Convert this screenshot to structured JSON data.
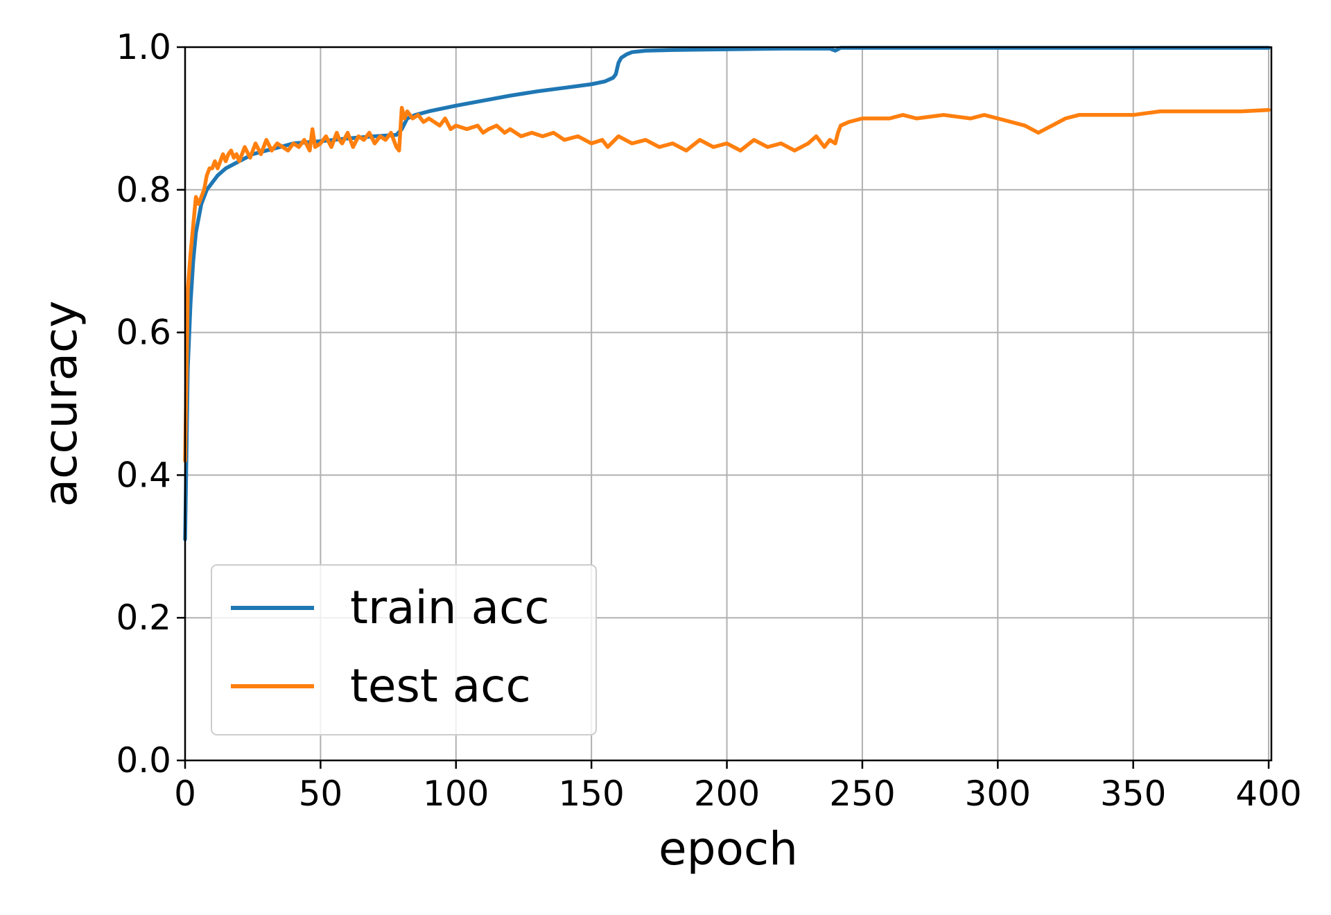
{
  "chart_data": {
    "type": "line",
    "xlabel": "epoch",
    "ylabel": "accuracy",
    "xlim": [
      0,
      401
    ],
    "ylim": [
      0.0,
      1.0
    ],
    "xticks": [
      0,
      50,
      100,
      150,
      200,
      250,
      300,
      350,
      400
    ],
    "yticks": [
      0.0,
      0.2,
      0.4,
      0.6,
      0.8,
      1.0
    ],
    "xtick_labels": [
      "0",
      "50",
      "100",
      "150",
      "200",
      "250",
      "300",
      "350",
      "400"
    ],
    "ytick_labels": [
      "0.0",
      "0.2",
      "0.4",
      "0.6",
      "0.8",
      "1.0"
    ],
    "grid": true,
    "legend_position": "lower-left",
    "series": [
      {
        "name": "train acc",
        "color": "#1f77b4",
        "x": [
          0,
          1,
          2,
          3,
          4,
          5,
          6,
          8,
          10,
          12,
          15,
          20,
          25,
          30,
          35,
          40,
          50,
          60,
          70,
          78,
          80,
          82,
          85,
          90,
          100,
          110,
          120,
          130,
          140,
          150,
          155,
          158,
          159,
          160,
          161,
          163,
          165,
          170,
          180,
          200,
          220,
          238,
          240,
          242,
          260,
          300,
          350,
          400
        ],
        "y": [
          0.31,
          0.55,
          0.64,
          0.7,
          0.74,
          0.76,
          0.78,
          0.8,
          0.81,
          0.82,
          0.83,
          0.84,
          0.85,
          0.855,
          0.86,
          0.865,
          0.868,
          0.872,
          0.875,
          0.877,
          0.885,
          0.9,
          0.905,
          0.91,
          0.918,
          0.925,
          0.932,
          0.938,
          0.943,
          0.948,
          0.952,
          0.957,
          0.962,
          0.978,
          0.985,
          0.99,
          0.993,
          0.995,
          0.996,
          0.997,
          0.998,
          0.998,
          0.995,
          0.999,
          0.999,
          0.999,
          0.999,
          0.999
        ]
      },
      {
        "name": "test acc",
        "color": "#ff7f0e",
        "x": [
          0,
          1,
          2,
          3,
          4,
          5,
          6,
          7,
          8,
          9,
          10,
          11,
          12,
          13,
          14,
          15,
          16,
          17,
          18,
          19,
          20,
          22,
          24,
          26,
          28,
          30,
          32,
          34,
          36,
          38,
          40,
          42,
          44,
          46,
          47,
          48,
          50,
          52,
          54,
          56,
          57,
          58,
          60,
          62,
          64,
          66,
          68,
          70,
          72,
          74,
          76,
          78,
          79,
          80,
          81,
          82,
          84,
          86,
          88,
          90,
          92,
          94,
          96,
          98,
          100,
          104,
          108,
          110,
          112,
          115,
          118,
          120,
          124,
          128,
          132,
          136,
          140,
          145,
          150,
          154,
          156,
          160,
          165,
          170,
          175,
          180,
          185,
          190,
          195,
          200,
          205,
          210,
          215,
          220,
          225,
          230,
          233,
          236,
          238,
          240,
          241,
          242,
          245,
          250,
          260,
          265,
          270,
          280,
          290,
          295,
          300,
          305,
          310,
          315,
          320,
          325,
          330,
          340,
          350,
          360,
          370,
          380,
          390,
          400
        ],
        "y": [
          0.42,
          0.66,
          0.71,
          0.75,
          0.79,
          0.78,
          0.79,
          0.8,
          0.82,
          0.83,
          0.83,
          0.84,
          0.83,
          0.84,
          0.85,
          0.84,
          0.85,
          0.855,
          0.845,
          0.85,
          0.84,
          0.86,
          0.845,
          0.865,
          0.85,
          0.87,
          0.855,
          0.865,
          0.86,
          0.855,
          0.865,
          0.86,
          0.87,
          0.855,
          0.885,
          0.86,
          0.865,
          0.875,
          0.86,
          0.88,
          0.87,
          0.865,
          0.88,
          0.86,
          0.875,
          0.87,
          0.88,
          0.865,
          0.875,
          0.87,
          0.88,
          0.86,
          0.855,
          0.915,
          0.9,
          0.91,
          0.9,
          0.905,
          0.895,
          0.9,
          0.895,
          0.89,
          0.9,
          0.885,
          0.89,
          0.885,
          0.89,
          0.88,
          0.885,
          0.89,
          0.88,
          0.885,
          0.875,
          0.88,
          0.875,
          0.88,
          0.87,
          0.875,
          0.865,
          0.87,
          0.86,
          0.875,
          0.865,
          0.87,
          0.86,
          0.865,
          0.855,
          0.87,
          0.86,
          0.865,
          0.855,
          0.87,
          0.86,
          0.865,
          0.855,
          0.865,
          0.875,
          0.86,
          0.87,
          0.865,
          0.88,
          0.89,
          0.895,
          0.9,
          0.9,
          0.905,
          0.9,
          0.905,
          0.9,
          0.905,
          0.9,
          0.895,
          0.89,
          0.88,
          0.89,
          0.9,
          0.905,
          0.905,
          0.905,
          0.91,
          0.91,
          0.91,
          0.91,
          0.912
        ]
      }
    ]
  }
}
